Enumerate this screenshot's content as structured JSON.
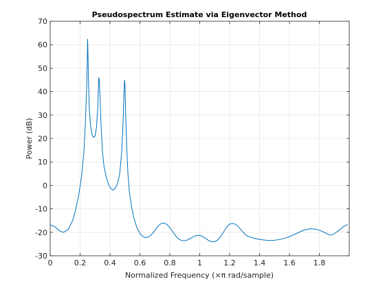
{
  "chart_data": {
    "type": "line",
    "title": "Pseudospectrum Estimate via Eigenvector Method",
    "xlabel": "Normalized Frequency  (×π rad/sample)",
    "ylabel": "Power (dB)",
    "xlim": [
      0,
      2
    ],
    "ylim": [
      -30,
      70
    ],
    "xticks": [
      "0",
      "0.2",
      "0.4",
      "0.6",
      "0.8",
      "1",
      "1.2",
      "1.4",
      "1.6",
      "1.8"
    ],
    "yticks": [
      "-30",
      "-20",
      "-10",
      "0",
      "10",
      "20",
      "30",
      "40",
      "50",
      "60",
      "70"
    ],
    "grid": true,
    "line_color": "#0072BD",
    "series": [
      {
        "points": [
          [
            0.0,
            -16.8
          ],
          [
            0.03,
            -17.5
          ],
          [
            0.06,
            -19.3
          ],
          [
            0.09,
            -20.0
          ],
          [
            0.12,
            -18.8
          ],
          [
            0.15,
            -15.0
          ],
          [
            0.17,
            -10.5
          ],
          [
            0.19,
            -4.5
          ],
          [
            0.21,
            4.0
          ],
          [
            0.225,
            14.0
          ],
          [
            0.235,
            26.0
          ],
          [
            0.243,
            40.0
          ],
          [
            0.248,
            53.0
          ],
          [
            0.25,
            62.5
          ],
          [
            0.252,
            58.0
          ],
          [
            0.256,
            45.0
          ],
          [
            0.262,
            32.0
          ],
          [
            0.27,
            25.5
          ],
          [
            0.28,
            21.5
          ],
          [
            0.29,
            20.5
          ],
          [
            0.3,
            21.0
          ],
          [
            0.31,
            25.0
          ],
          [
            0.318,
            33.0
          ],
          [
            0.322,
            41.0
          ],
          [
            0.325,
            46.0
          ],
          [
            0.328,
            45.0
          ],
          [
            0.333,
            38.0
          ],
          [
            0.34,
            26.0
          ],
          [
            0.35,
            14.0
          ],
          [
            0.36,
            8.0
          ],
          [
            0.375,
            3.5
          ],
          [
            0.39,
            0.5
          ],
          [
            0.405,
            -1.3
          ],
          [
            0.42,
            -2.0
          ],
          [
            0.435,
            -1.2
          ],
          [
            0.45,
            0.8
          ],
          [
            0.465,
            5.0
          ],
          [
            0.478,
            14.0
          ],
          [
            0.487,
            26.0
          ],
          [
            0.493,
            38.0
          ],
          [
            0.497,
            45.0
          ],
          [
            0.5,
            43.0
          ],
          [
            0.505,
            30.0
          ],
          [
            0.512,
            16.0
          ],
          [
            0.52,
            5.0
          ],
          [
            0.53,
            -3.0
          ],
          [
            0.545,
            -9.5
          ],
          [
            0.56,
            -14.0
          ],
          [
            0.58,
            -18.0
          ],
          [
            0.6,
            -20.5
          ],
          [
            0.62,
            -21.8
          ],
          [
            0.64,
            -22.3
          ],
          [
            0.66,
            -21.9
          ],
          [
            0.68,
            -20.8
          ],
          [
            0.7,
            -19.2
          ],
          [
            0.72,
            -17.5
          ],
          [
            0.74,
            -16.3
          ],
          [
            0.76,
            -16.0
          ],
          [
            0.78,
            -16.6
          ],
          [
            0.8,
            -18.0
          ],
          [
            0.82,
            -19.8
          ],
          [
            0.84,
            -21.6
          ],
          [
            0.86,
            -22.9
          ],
          [
            0.88,
            -23.5
          ],
          [
            0.9,
            -23.6
          ],
          [
            0.92,
            -23.2
          ],
          [
            0.94,
            -22.5
          ],
          [
            0.96,
            -21.8
          ],
          [
            0.98,
            -21.3
          ],
          [
            1.0,
            -21.3
          ],
          [
            1.02,
            -21.8
          ],
          [
            1.04,
            -22.6
          ],
          [
            1.06,
            -23.5
          ],
          [
            1.08,
            -24.0
          ],
          [
            1.1,
            -24.0
          ],
          [
            1.12,
            -23.3
          ],
          [
            1.14,
            -21.8
          ],
          [
            1.16,
            -19.8
          ],
          [
            1.18,
            -17.8
          ],
          [
            1.2,
            -16.5
          ],
          [
            1.22,
            -16.2
          ],
          [
            1.24,
            -16.6
          ],
          [
            1.26,
            -17.7
          ],
          [
            1.28,
            -19.2
          ],
          [
            1.3,
            -20.6
          ],
          [
            1.32,
            -21.6
          ],
          [
            1.35,
            -22.3
          ],
          [
            1.38,
            -22.8
          ],
          [
            1.42,
            -23.2
          ],
          [
            1.46,
            -23.5
          ],
          [
            1.5,
            -23.4
          ],
          [
            1.54,
            -23.0
          ],
          [
            1.58,
            -22.3
          ],
          [
            1.62,
            -21.3
          ],
          [
            1.66,
            -20.1
          ],
          [
            1.7,
            -19.0
          ],
          [
            1.74,
            -18.5
          ],
          [
            1.78,
            -18.7
          ],
          [
            1.82,
            -19.6
          ],
          [
            1.86,
            -20.9
          ],
          [
            1.88,
            -21.2
          ],
          [
            1.9,
            -20.6
          ],
          [
            1.93,
            -19.2
          ],
          [
            1.96,
            -17.6
          ],
          [
            1.99,
            -16.6
          ]
        ]
      }
    ]
  }
}
